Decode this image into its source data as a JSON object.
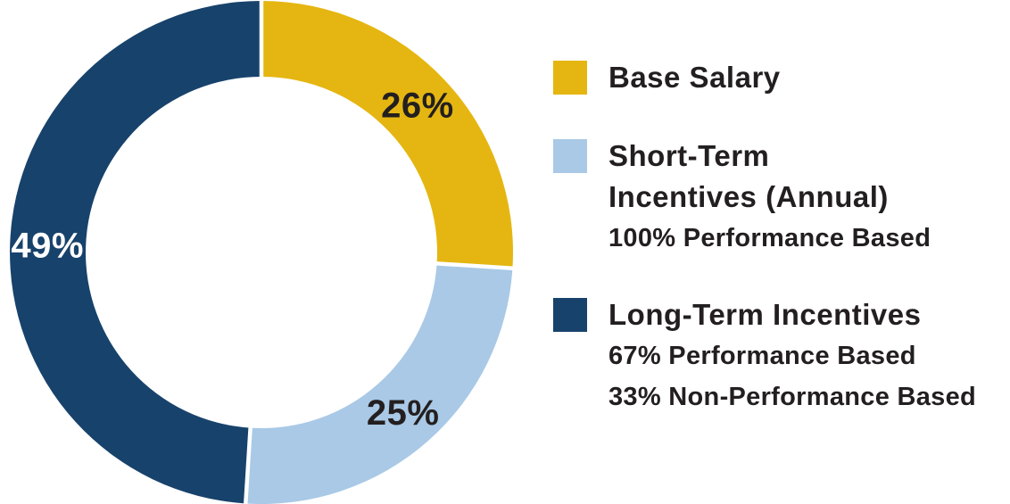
{
  "chart_data": {
    "type": "pie",
    "variant": "donut",
    "start_angle_deg": 0,
    "direction": "clockwise",
    "title": "",
    "slices": [
      {
        "label": "Base Salary",
        "value": 26,
        "display": "26%",
        "color": "#e5b611",
        "label_color": "#231f20"
      },
      {
        "label": "Short-Term Incentives (Annual)",
        "value": 25,
        "display": "25%",
        "color": "#a9c9e6",
        "label_color": "#231f20"
      },
      {
        "label": "Long-Term Incentives",
        "value": 49,
        "display": "49%",
        "color": "#17426b",
        "label_color": "#ffffff"
      }
    ],
    "separator_color": "#ffffff",
    "legend_position": "right"
  },
  "legend": {
    "items": [
      {
        "swatch_color": "#e5b611",
        "title_lines": [
          "Base Salary"
        ],
        "detail_lines": []
      },
      {
        "swatch_color": "#a9c9e6",
        "title_lines": [
          "Short-Term",
          "Incentives (Annual)"
        ],
        "detail_lines": [
          "100% Performance Based"
        ]
      },
      {
        "swatch_color": "#17426b",
        "title_lines": [
          "Long-Term Incentives"
        ],
        "detail_lines": [
          "67% Performance Based",
          "33% Non-Performance Based"
        ]
      }
    ]
  }
}
